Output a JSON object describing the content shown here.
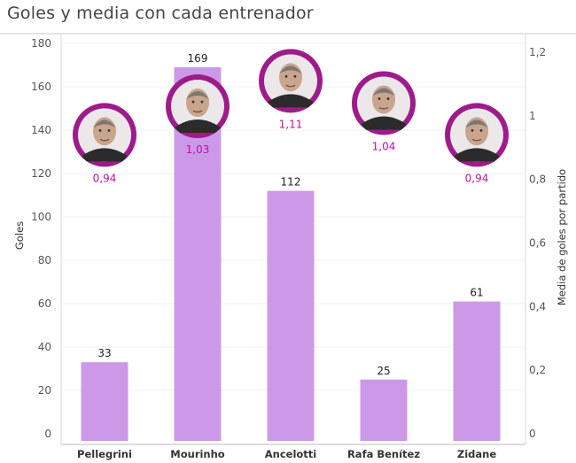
{
  "title": "Goles y media con cada entrenador",
  "chart_data": {
    "type": "bar",
    "categories": [
      "Pellegrini",
      "Mourinho",
      "Ancelotti",
      "Rafa Benítez",
      "Zidane"
    ],
    "series": [
      {
        "values": [
          33,
          169,
          112,
          25,
          61
        ]
      },
      {
        "values": [
          0.94,
          1.03,
          1.11,
          1.04,
          0.94
        ]
      }
    ],
    "value_labels": [
      "33",
      "169",
      "112",
      "25",
      "61"
    ],
    "avg_labels": [
      "0,94",
      "1,03",
      "1,11",
      "1,04",
      "0,94"
    ],
    "ylabel": "Goles",
    "y2label": "Media de goles por partido",
    "ylim": [
      0,
      180
    ],
    "y2lim": [
      0,
      1.2
    ],
    "yticks": [
      "0",
      "20",
      "40",
      "60",
      "80",
      "100",
      "120",
      "140",
      "160",
      "180"
    ],
    "y2ticks": [
      "0",
      "0,2",
      "0,4",
      "0,6",
      "0,8",
      "1",
      "1,2"
    ],
    "bar_color": "#cc99e8",
    "marker_color": "#9e1b8a",
    "avg_color": "#c010a8",
    "marker_icons": [
      "coach-portrait",
      "coach-portrait",
      "coach-portrait",
      "coach-portrait",
      "coach-portrait"
    ]
  }
}
